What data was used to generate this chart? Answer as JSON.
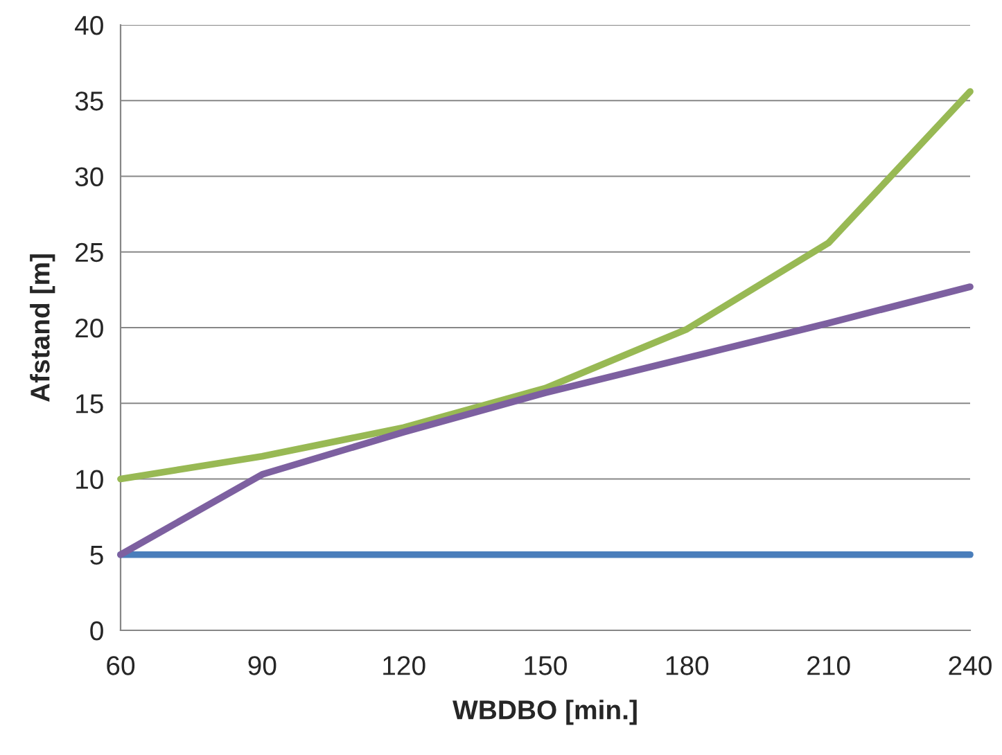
{
  "chart_data": {
    "type": "line",
    "xlabel": "WBDBO [min.]",
    "ylabel": "Afstand [m]",
    "x": [
      60,
      90,
      120,
      150,
      180,
      210,
      240
    ],
    "series": [
      {
        "color": "#4a7ebb",
        "values": [
          5,
          5,
          5,
          5,
          5,
          5,
          5
        ]
      },
      {
        "color": "#98b954",
        "values": [
          10,
          11.5,
          13.4,
          16,
          19.9,
          25.6,
          35.6
        ]
      },
      {
        "color": "#7d60a0",
        "values": [
          5,
          10.3,
          13.1,
          15.7,
          18,
          20.3,
          22.7
        ]
      }
    ],
    "xlim": [
      60,
      240
    ],
    "xticks": [
      60,
      90,
      120,
      150,
      180,
      210,
      240
    ],
    "ylim": [
      0,
      40
    ],
    "yticks": [
      0,
      5,
      10,
      15,
      20,
      25,
      30,
      35,
      40
    ],
    "grid": "y",
    "marker": "none",
    "line_style": "solid"
  }
}
